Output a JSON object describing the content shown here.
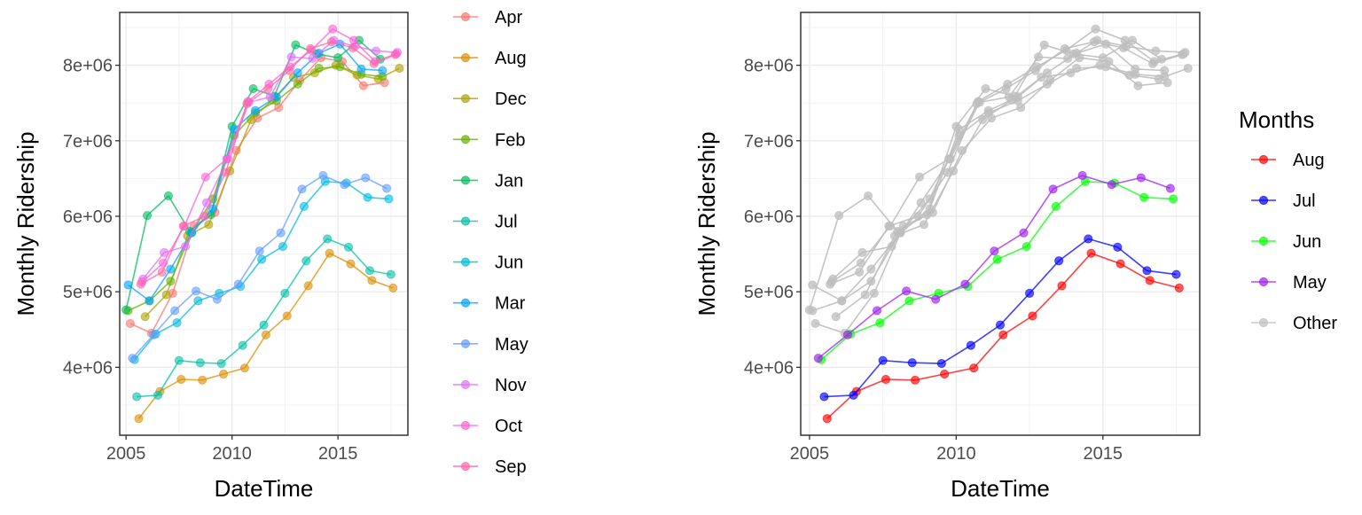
{
  "chart_data": [
    {
      "type": "line",
      "xlabel": "DateTime",
      "ylabel": "Monthly Ridership",
      "xlim": [
        2004.7,
        2018.3
      ],
      "ylim": [
        3100000,
        8700000
      ],
      "x_ticks": [
        2005,
        2010,
        2015
      ],
      "x_tick_labels": [
        "2005",
        "2010",
        "2015"
      ],
      "y_ticks": [
        4000000,
        5000000,
        6000000,
        7000000,
        8000000
      ],
      "y_tick_labels": [
        "4e+06",
        "5e+06",
        "6e+06",
        "7e+06",
        "8e+06"
      ],
      "grid": true,
      "legend_position": "right",
      "series": [
        {
          "name": "Apr",
          "color": "#F8766D",
          "x": [
            2005.2,
            2006.2,
            2007.2,
            2008.2,
            2009.2,
            2010.2,
            2011.2,
            2012.2,
            2013.2,
            2014.2,
            2015.2,
            2016.2,
            2017.2
          ],
          "y": [
            4580000,
            4450000,
            4980000,
            5870000,
            6050000,
            6870000,
            7300000,
            7440000,
            7800000,
            8100000,
            8050000,
            7730000,
            7770000
          ]
        },
        {
          "name": "Aug",
          "color": "#DB8E00",
          "x": [
            2005.6,
            2006.6,
            2007.6,
            2008.6,
            2009.6,
            2010.6,
            2011.6,
            2012.6,
            2013.6,
            2014.6,
            2015.6,
            2016.6,
            2017.6
          ],
          "y": [
            3320000,
            3680000,
            3840000,
            3830000,
            3910000,
            3990000,
            4430000,
            4680000,
            5080000,
            5510000,
            5370000,
            5150000,
            5050000
          ]
        },
        {
          "name": "Dec",
          "color": "#AEA200",
          "x": [
            2005.9,
            2006.9,
            2007.9,
            2008.9,
            2009.9,
            2010.9,
            2011.9,
            2012.9,
            2013.9,
            2014.9,
            2015.9,
            2016.9,
            2017.9
          ],
          "y": [
            4670000,
            4960000,
            5740000,
            5890000,
            6600000,
            7280000,
            7540000,
            7840000,
            7900000,
            8000000,
            7870000,
            7820000,
            7960000
          ]
        },
        {
          "name": "Feb",
          "color": "#64B200",
          "x": [
            2005.1,
            2006.1,
            2007.1,
            2008.1,
            2009.1,
            2010.1,
            2011.1,
            2012.1,
            2013.1,
            2014.1,
            2015.1,
            2016.1,
            2017.1
          ],
          "y": [
            4750000,
            4880000,
            5140000,
            5790000,
            6230000,
            7070000,
            7370000,
            7530000,
            7750000,
            7960000,
            7980000,
            7880000,
            7850000
          ]
        },
        {
          "name": "Jan",
          "color": "#00BD5C",
          "x": [
            2005.0,
            2006.0,
            2007.0,
            2008.0,
            2009.0,
            2010.0,
            2011.0,
            2012.0,
            2013.0,
            2014.0,
            2015.0,
            2016.0,
            2017.0
          ],
          "y": [
            4760000,
            6010000,
            6270000,
            5800000,
            6020000,
            7190000,
            7690000,
            7590000,
            8270000,
            8150000,
            8100000,
            8330000,
            8080000
          ]
        },
        {
          "name": "Jul",
          "color": "#00C1A7",
          "x": [
            2005.5,
            2006.5,
            2007.5,
            2008.5,
            2009.5,
            2010.5,
            2011.5,
            2012.5,
            2013.5,
            2014.5,
            2015.5,
            2016.5,
            2017.5
          ],
          "y": [
            3610000,
            3630000,
            4090000,
            4060000,
            4050000,
            4290000,
            4560000,
            4980000,
            5410000,
            5700000,
            5590000,
            5280000,
            5230000
          ]
        },
        {
          "name": "Jun",
          "color": "#00BADE",
          "x": [
            2005.4,
            2006.4,
            2007.4,
            2008.4,
            2009.4,
            2010.4,
            2011.4,
            2012.4,
            2013.4,
            2014.4,
            2015.4,
            2016.4,
            2017.4
          ],
          "y": [
            4100000,
            4440000,
            4590000,
            4880000,
            4980000,
            5070000,
            5430000,
            5600000,
            6130000,
            6460000,
            6440000,
            6250000,
            6230000
          ]
        },
        {
          "name": "Mar",
          "color": "#00A6FF",
          "x": [
            2005.1,
            2006.1,
            2007.1,
            2008.1,
            2009.1,
            2010.1,
            2011.1,
            2012.1,
            2013.1,
            2014.1,
            2015.1,
            2016.1,
            2017.1
          ],
          "y": [
            5090000,
            4880000,
            5300000,
            5780000,
            6100000,
            7150000,
            7400000,
            7580000,
            7900000,
            8160000,
            8280000,
            7950000,
            7930000
          ]
        },
        {
          "name": "May",
          "color": "#619CFF",
          "x": [
            2005.3,
            2006.3,
            2007.3,
            2008.3,
            2009.3,
            2010.3,
            2011.3,
            2012.3,
            2013.3,
            2014.3,
            2015.3,
            2016.3,
            2017.3
          ],
          "y": [
            4120000,
            4430000,
            4750000,
            5010000,
            4900000,
            5100000,
            5540000,
            5780000,
            6360000,
            6540000,
            6420000,
            6510000,
            6370000
          ]
        },
        {
          "name": "Nov",
          "color": "#DF70F8",
          "x": [
            2005.8,
            2006.8,
            2007.8,
            2008.8,
            2009.8,
            2010.8,
            2011.8,
            2012.8,
            2013.8,
            2014.8,
            2015.8,
            2016.8,
            2017.8
          ],
          "y": [
            5170000,
            5520000,
            5600000,
            6180000,
            6760000,
            7510000,
            7580000,
            8110000,
            8090000,
            8330000,
            8250000,
            8190000,
            8170000
          ]
        },
        {
          "name": "Oct",
          "color": "#FB61D7",
          "x": [
            2005.75,
            2006.75,
            2007.75,
            2008.75,
            2009.75,
            2010.75,
            2011.75,
            2012.75,
            2013.75,
            2014.75,
            2015.75,
            2016.75,
            2017.75
          ],
          "y": [
            5130000,
            5380000,
            5870000,
            6520000,
            6760000,
            7520000,
            7750000,
            7980000,
            8200000,
            8480000,
            8330000,
            8050000,
            8150000
          ]
        },
        {
          "name": "Sep",
          "color": "#FF66A8",
          "x": [
            2005.7,
            2006.7,
            2007.7,
            2008.7,
            2009.7,
            2010.7,
            2011.7,
            2012.7,
            2013.7,
            2014.7,
            2015.7,
            2016.7,
            2017.7
          ],
          "y": [
            5100000,
            5260000,
            5870000,
            6000000,
            6580000,
            7490000,
            7690000,
            7930000,
            8220000,
            8310000,
            8230000,
            8020000,
            8140000
          ]
        }
      ]
    },
    {
      "type": "line",
      "xlabel": "DateTime",
      "ylabel": "Monthly Ridership",
      "legend_title": "Months",
      "xlim": [
        2004.7,
        2018.3
      ],
      "ylim": [
        3100000,
        8700000
      ],
      "x_ticks": [
        2005,
        2010,
        2015
      ],
      "x_tick_labels": [
        "2005",
        "2010",
        "2015"
      ],
      "y_ticks": [
        4000000,
        5000000,
        6000000,
        7000000,
        8000000
      ],
      "y_tick_labels": [
        "4e+06",
        "5e+06",
        "6e+06",
        "7e+06",
        "8e+06"
      ],
      "grid": true,
      "legend_position": "right",
      "series": [
        {
          "name": "Aug",
          "color": "#FF0000",
          "x": [
            2005.6,
            2006.6,
            2007.6,
            2008.6,
            2009.6,
            2010.6,
            2011.6,
            2012.6,
            2013.6,
            2014.6,
            2015.6,
            2016.6,
            2017.6
          ],
          "y": [
            3320000,
            3680000,
            3840000,
            3830000,
            3910000,
            3990000,
            4430000,
            4680000,
            5080000,
            5510000,
            5370000,
            5150000,
            5050000
          ]
        },
        {
          "name": "Jul",
          "color": "#0000FF",
          "x": [
            2005.5,
            2006.5,
            2007.5,
            2008.5,
            2009.5,
            2010.5,
            2011.5,
            2012.5,
            2013.5,
            2014.5,
            2015.5,
            2016.5,
            2017.5
          ],
          "y": [
            3610000,
            3630000,
            4090000,
            4060000,
            4050000,
            4290000,
            4560000,
            4980000,
            5410000,
            5700000,
            5590000,
            5280000,
            5230000
          ]
        },
        {
          "name": "Jun",
          "color": "#00FF00",
          "x": [
            2005.4,
            2006.4,
            2007.4,
            2008.4,
            2009.4,
            2010.4,
            2011.4,
            2012.4,
            2013.4,
            2014.4,
            2015.4,
            2016.4,
            2017.4
          ],
          "y": [
            4100000,
            4440000,
            4590000,
            4880000,
            4980000,
            5070000,
            5430000,
            5600000,
            6130000,
            6460000,
            6440000,
            6250000,
            6230000
          ]
        },
        {
          "name": "May",
          "color": "#A020F0",
          "x": [
            2005.3,
            2006.3,
            2007.3,
            2008.3,
            2009.3,
            2010.3,
            2011.3,
            2012.3,
            2013.3,
            2014.3,
            2015.3,
            2016.3,
            2017.3
          ],
          "y": [
            4120000,
            4430000,
            4750000,
            5010000,
            4900000,
            5100000,
            5540000,
            5780000,
            6360000,
            6540000,
            6420000,
            6510000,
            6370000
          ]
        }
      ],
      "other_series": {
        "name": "Other",
        "color": "#BEBEBE",
        "reference_chart_index": 0,
        "excluded_series": [
          "Aug",
          "Jul",
          "Jun",
          "May"
        ]
      }
    }
  ]
}
